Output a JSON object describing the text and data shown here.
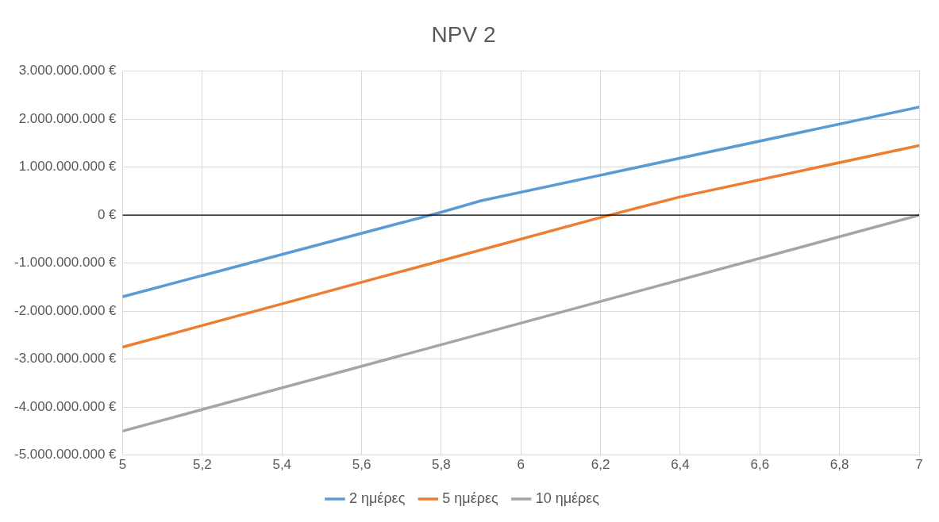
{
  "chart_data": {
    "type": "line",
    "title": "NPV 2",
    "series": [
      {
        "name": "2 ημέρες",
        "color": "#5b9bd5",
        "x": [
          5,
          5.8,
          5.9,
          7
        ],
        "values": [
          -1700000000,
          60000000,
          300000000,
          2250000000
        ]
      },
      {
        "name": "5 ημέρες",
        "color": "#ed7d31",
        "x": [
          5,
          6.2,
          6.4,
          7
        ],
        "values": [
          -2750000000,
          -50000000,
          380000000,
          1450000000
        ]
      },
      {
        "name": "10 ημέρες",
        "color": "#a5a5a5",
        "x": [
          5,
          7
        ],
        "values": [
          -4500000000,
          0
        ]
      }
    ],
    "xlim": [
      5,
      7
    ],
    "xticks": [
      5,
      {
        "value": 5.2,
        "label": "5,2"
      },
      {
        "value": 5.4,
        "label": "5,4"
      },
      {
        "value": 5.6,
        "label": "5,6"
      },
      {
        "value": 5.8,
        "label": "5,8"
      },
      6,
      {
        "value": 6.2,
        "label": "6,2"
      },
      {
        "value": 6.4,
        "label": "6,4"
      },
      {
        "value": 6.6,
        "label": "6,6"
      },
      {
        "value": 6.8,
        "label": "6,8"
      },
      7
    ],
    "ylim": [
      -5000000000,
      3000000000
    ],
    "yticks": [
      {
        "value": -5000000000,
        "label": "-5.000.000.000 €"
      },
      {
        "value": -4000000000,
        "label": "-4.000.000.000 €"
      },
      {
        "value": -3000000000,
        "label": "-3.000.000.000 €"
      },
      {
        "value": -2000000000,
        "label": "-2.000.000.000 €"
      },
      {
        "value": -1000000000,
        "label": "-1.000.000.000 €"
      },
      {
        "value": 0,
        "label": "0 €"
      },
      {
        "value": 1000000000,
        "label": "1.000.000.000 €"
      },
      {
        "value": 2000000000,
        "label": "2.000.000.000 €"
      },
      {
        "value": 3000000000,
        "label": "3.000.000.000 €"
      }
    ],
    "ref_lines": [
      {
        "axis": "y",
        "value": 0,
        "color": "#000000"
      }
    ],
    "grid": true,
    "legend": "bottom",
    "marker": "none",
    "line_style": "solid"
  }
}
